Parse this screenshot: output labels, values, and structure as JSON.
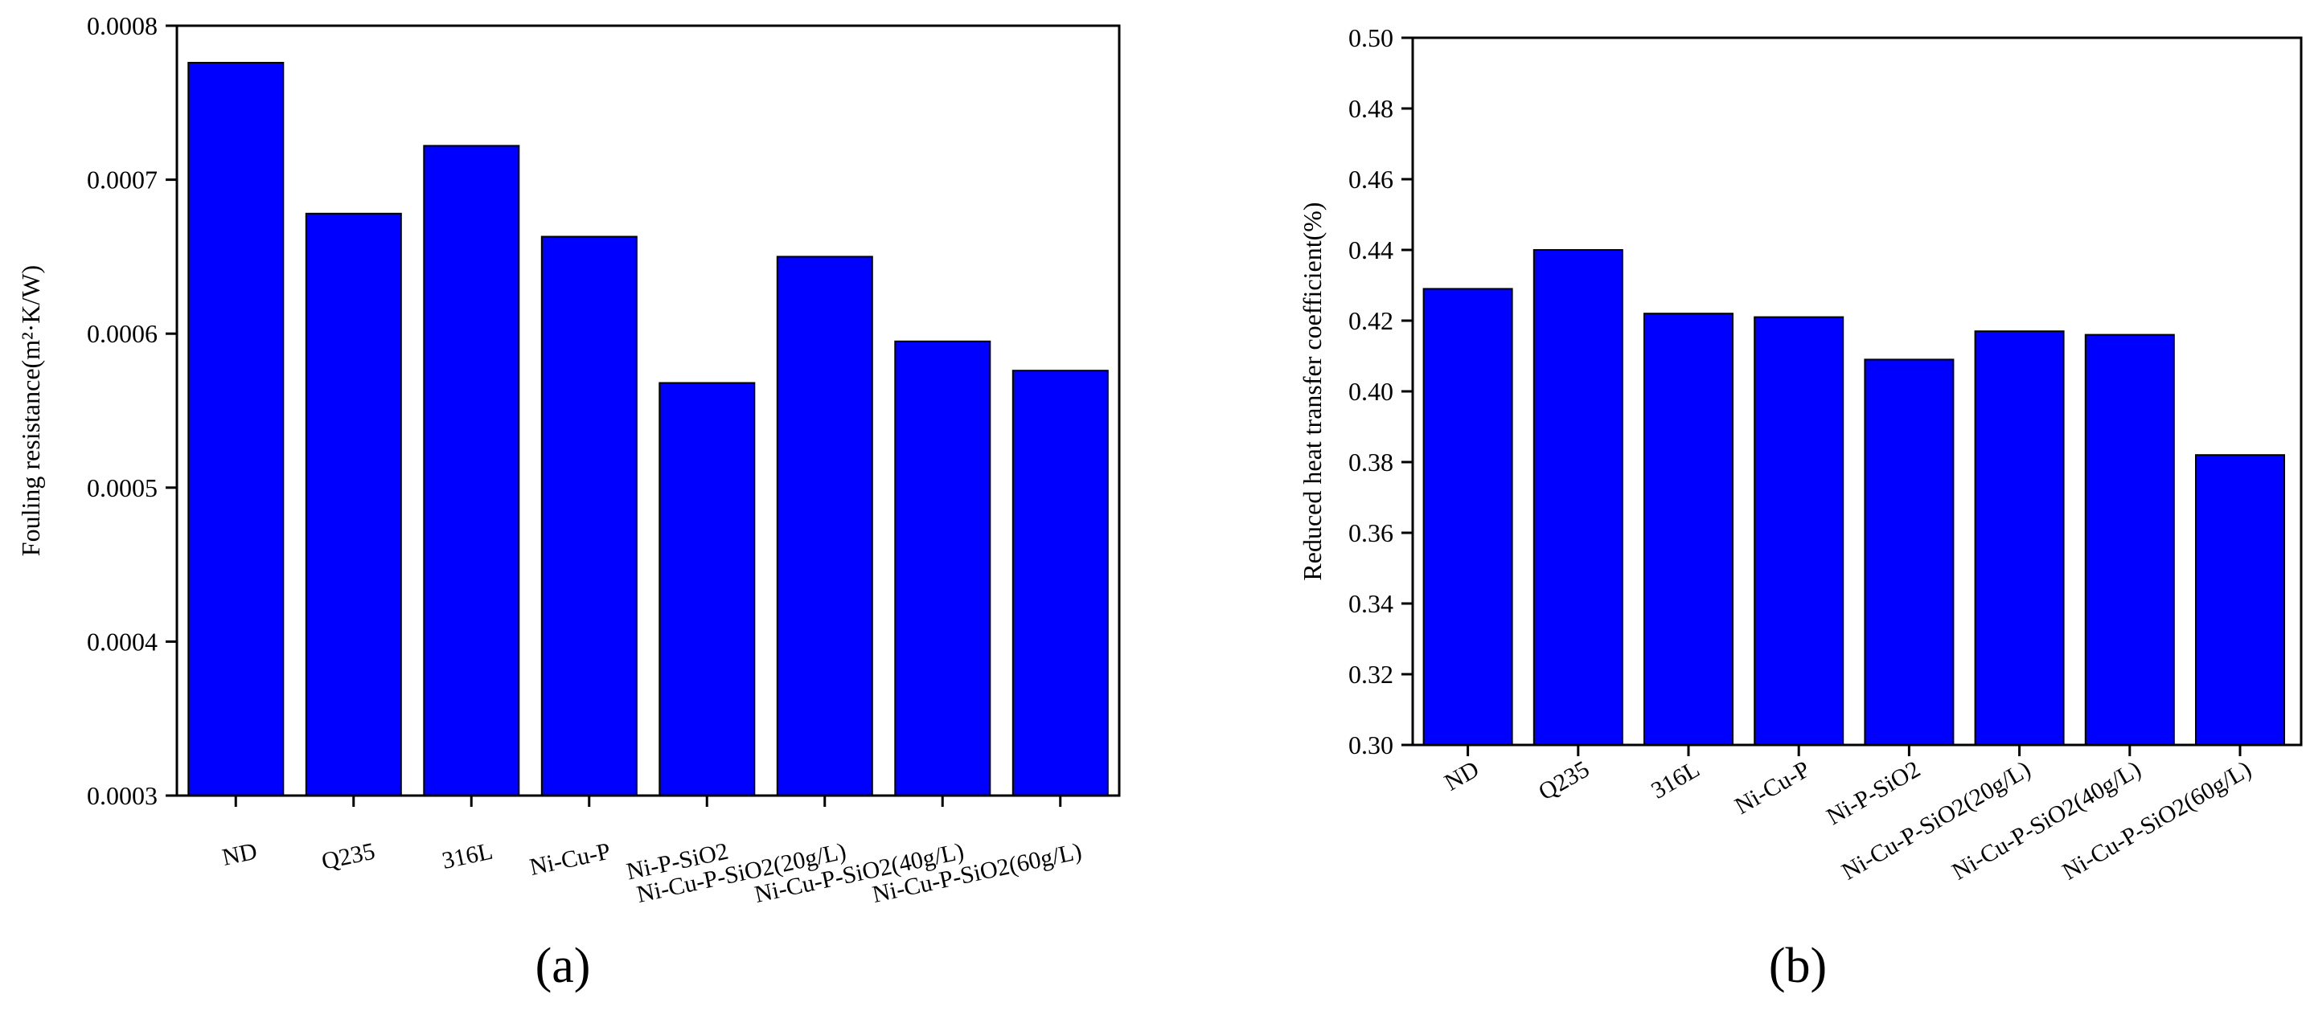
{
  "chart_data": [
    {
      "type": "bar",
      "panel_label": "(a)",
      "ylabel": "Fouling resistance(m²·K/W)",
      "xlabel": "",
      "categories": [
        "ND",
        "Q235",
        "316L",
        "Ni-Cu-P",
        "Ni-P-SiO2",
        "Ni-Cu-P-SiO2(20g/L)",
        "Ni-Cu-P-SiO2(40g/L)",
        "Ni-Cu-P-SiO2(60g/L)"
      ],
      "values": [
        0.000776,
        0.000678,
        0.000722,
        0.000663,
        0.000568,
        0.00065,
        0.000595,
        0.000576
      ],
      "ylim": [
        0.0003,
        0.0008
      ],
      "yticks": [
        "0.0003",
        "0.0004",
        "0.0005",
        "0.0006",
        "0.0007",
        "0.0008"
      ],
      "bar_color": "#0000ff",
      "grid": false
    },
    {
      "type": "bar",
      "panel_label": "(b)",
      "ylabel": "Reduced heat transfer coefficient(%)",
      "xlabel": "",
      "categories": [
        "ND",
        "Q235",
        "316L",
        "Ni-Cu-P",
        "Ni-P-SiO2",
        "Ni-Cu-P-SiO2(20g/L)",
        "Ni-Cu-P-SiO2(40g/L)",
        "Ni-Cu-P-SiO2(60g/L)"
      ],
      "values": [
        0.429,
        0.44,
        0.422,
        0.421,
        0.409,
        0.417,
        0.416,
        0.382
      ],
      "ylim": [
        0.3,
        0.5
      ],
      "yticks": [
        "0.30",
        "0.32",
        "0.34",
        "0.36",
        "0.38",
        "0.40",
        "0.42",
        "0.44",
        "0.46",
        "0.48",
        "0.50"
      ],
      "bar_color": "#0000ff",
      "grid": false
    }
  ]
}
